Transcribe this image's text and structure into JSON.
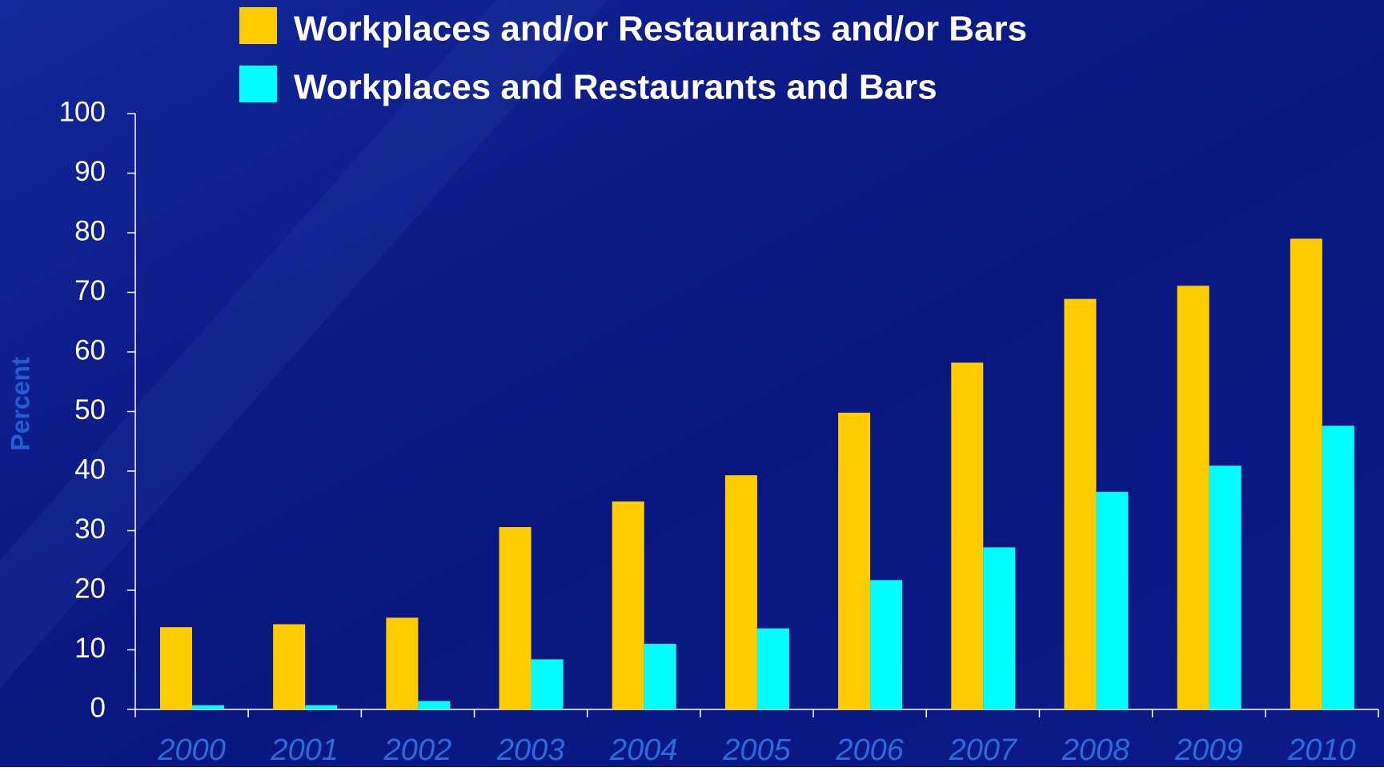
{
  "chart_data": {
    "type": "bar",
    "y_label": "Percent",
    "categories": [
      "2000",
      "2001",
      "2002",
      "2003",
      "2004",
      "2005",
      "2006",
      "2007",
      "2008",
      "2009",
      "2010"
    ],
    "series": [
      {
        "name": "Workplaces and/or Restaurants and/or Bars",
        "color": "#ffcc00",
        "values": [
          13.8,
          14.3,
          15.4,
          30.6,
          34.9,
          39.3,
          49.8,
          58.2,
          68.9,
          71.1,
          79.0
        ]
      },
      {
        "name": "Workplaces and Restaurants and Bars",
        "color": "#00ffff",
        "values": [
          0.7,
          0.7,
          1.4,
          8.4,
          11.0,
          13.6,
          21.7,
          27.2,
          36.5,
          40.9,
          47.6
        ]
      }
    ],
    "ylim": [
      0,
      100
    ],
    "yticks": [
      0,
      10,
      20,
      30,
      40,
      50,
      60,
      70,
      80,
      90,
      100
    ],
    "legend": "top"
  }
}
